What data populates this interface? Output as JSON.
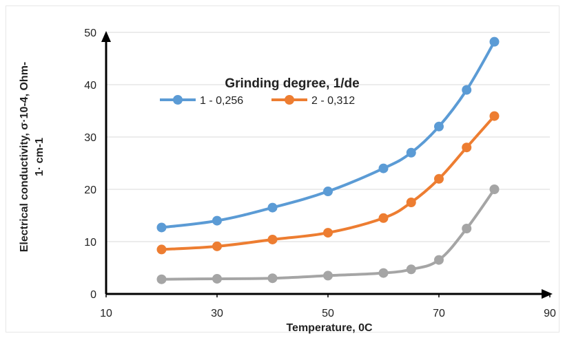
{
  "chart_data": {
    "type": "line",
    "legend_title": "Grinding degree, 1/de",
    "xlabel": "Temperature, 0C",
    "ylabel_line1": "Electrical conductivity, σ·10-4, Ohm-",
    "ylabel_line2": "1· cm-1",
    "xlim": [
      10,
      90
    ],
    "ylim": [
      0,
      50
    ],
    "x_ticks": [
      "10",
      "30",
      "50",
      "70",
      "90"
    ],
    "y_ticks": [
      "0",
      "10",
      "20",
      "30",
      "40",
      "50"
    ],
    "grid": true,
    "legend_position": "top-center",
    "series": [
      {
        "name": "1 - 0,256",
        "color": "#5b9bd5",
        "x": [
          20,
          30,
          40,
          50,
          60,
          65,
          70,
          75,
          80
        ],
        "y": [
          12.7,
          14.0,
          16.5,
          19.6,
          24.0,
          27.0,
          32.0,
          39.0,
          48.2
        ]
      },
      {
        "name": "2 - 0,312",
        "color": "#ed7d31",
        "x": [
          20,
          30,
          40,
          50,
          60,
          65,
          70,
          75,
          80
        ],
        "y": [
          8.5,
          9.1,
          10.4,
          11.7,
          14.5,
          17.5,
          22.0,
          28.0,
          34.0
        ]
      },
      {
        "color": "#a5a5a5",
        "x": [
          20,
          30,
          40,
          50,
          60,
          65,
          70,
          75,
          80
        ],
        "y": [
          2.8,
          2.9,
          3.0,
          3.5,
          4.0,
          4.7,
          6.5,
          12.5,
          20.0
        ]
      }
    ]
  }
}
